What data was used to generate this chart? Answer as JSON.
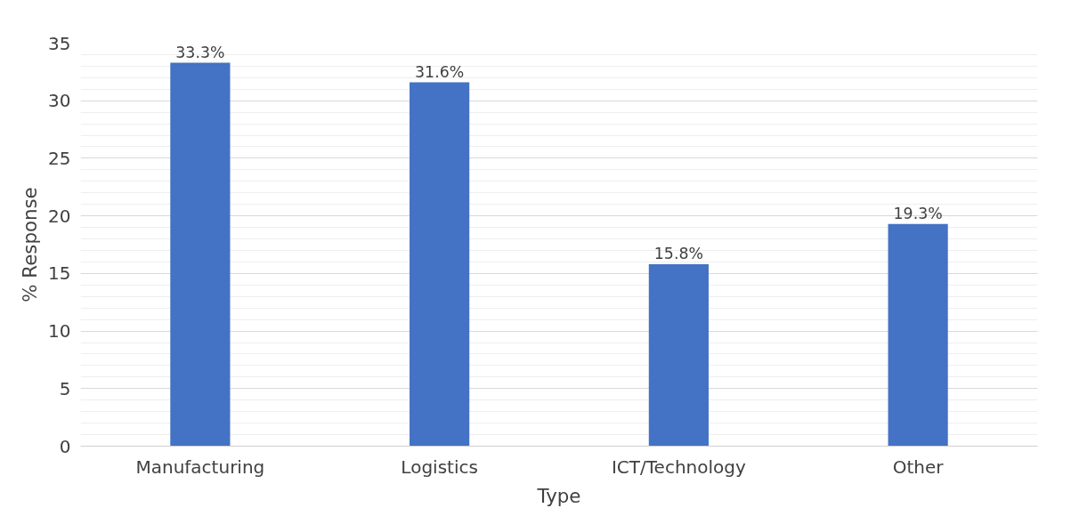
{
  "chart_data": {
    "type": "bar",
    "xlabel": "Type",
    "ylabel": "% Response",
    "categories": [
      "Manufacturing",
      "Logistics",
      "ICT/Technology",
      "Other"
    ],
    "values": [
      33.3,
      31.6,
      15.8,
      19.3
    ],
    "color": "#4472c4",
    "value_labels": [
      "33.3%",
      "31.6%",
      "15.8%",
      "19.3%"
    ],
    "ylim": [
      0,
      35
    ],
    "yticks": [
      0,
      5,
      10,
      15,
      20,
      25,
      30,
      35
    ],
    "grid": "y"
  }
}
